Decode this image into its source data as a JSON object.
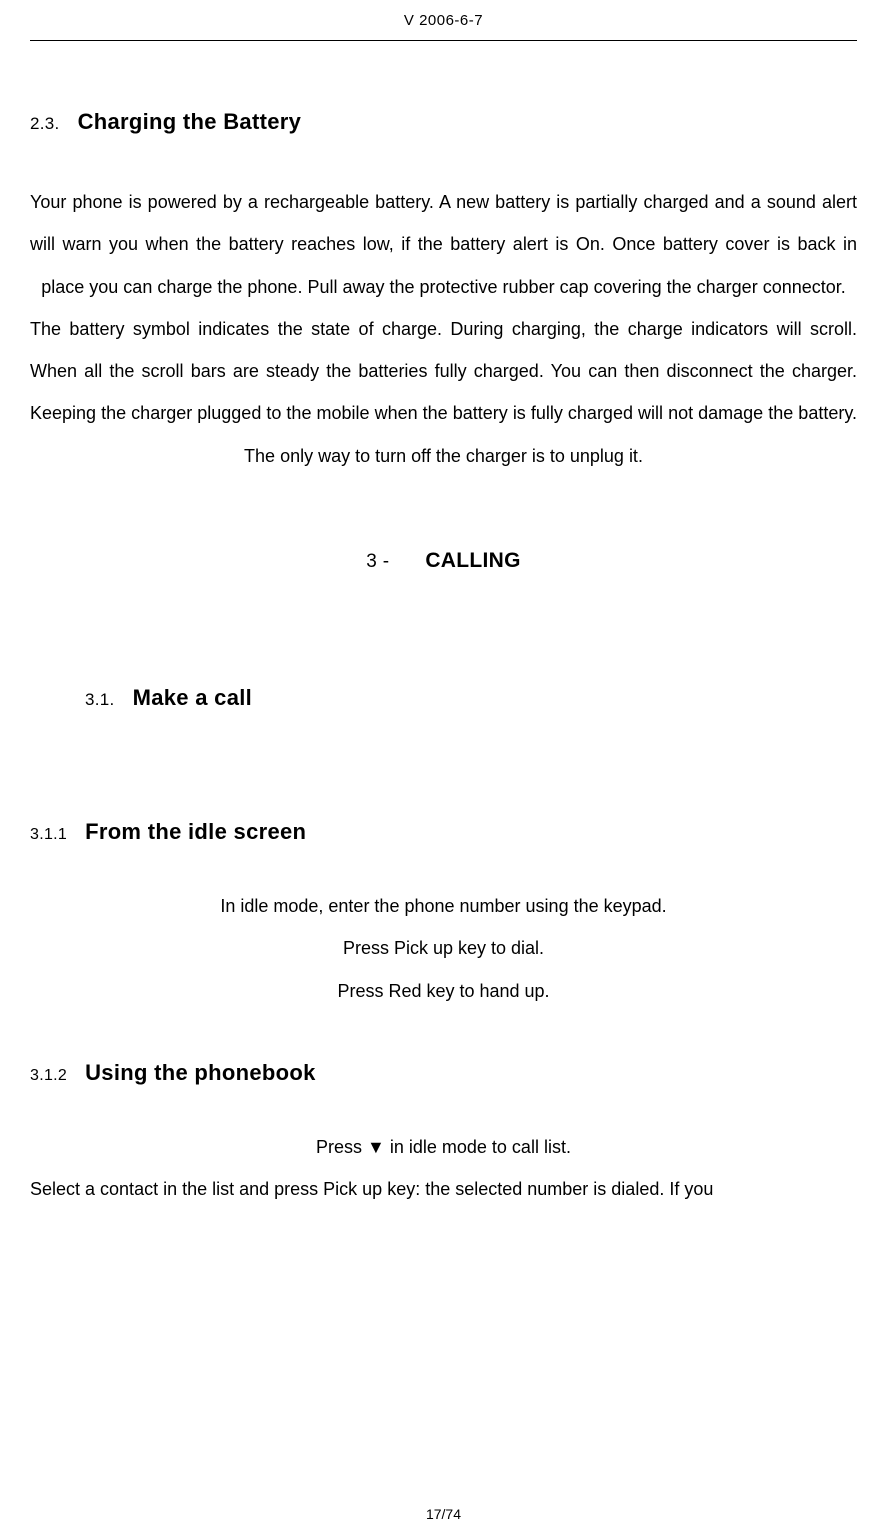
{
  "header": {
    "version_date": "V 2006-6-7"
  },
  "section_2_3": {
    "number": "2.3.",
    "title": "Charging the Battery",
    "paragraph_1": "Your phone is powered by a rechargeable battery. A new battery is partially charged and a sound alert will warn you when the battery reaches low, if the battery alert is On. Once battery cover is back in place you can charge the phone. Pull away the protective rubber cap covering the charger connector.",
    "paragraph_2": "The battery symbol indicates the state of charge. During charging, the charge indicators will scroll. When all the scroll bars are steady the batteries fully charged. You can then disconnect the charger. Keeping the charger plugged to the mobile when the battery is fully charged will not damage the battery. The only way to turn off the charger is to unplug it."
  },
  "chapter_3": {
    "number": "3 -",
    "title": "CALLING"
  },
  "section_3_1": {
    "number": "3.1.",
    "title": "Make a call"
  },
  "section_3_1_1": {
    "number": "3.1.1",
    "title": "From the idle screen",
    "line_1": "In idle mode, enter the phone number using the keypad.",
    "line_2": "Press Pick up key to dial.",
    "line_3": "Press Red key to hand up."
  },
  "section_3_1_2": {
    "number": "3.1.2",
    "title": "Using the phonebook",
    "line_1": "Press ▼ in idle mode to call list.",
    "line_2": "Select a contact in the list and press Pick up key: the selected number is dialed. If you"
  },
  "footer": {
    "page_number": "17/74"
  },
  "typography": {
    "body_fontsize": 18,
    "heading_fontsize": 22,
    "header_fontsize": 15,
    "footer_fontsize": 14,
    "line_height": 2.35,
    "text_color": "#000000",
    "background_color": "#ffffff"
  }
}
